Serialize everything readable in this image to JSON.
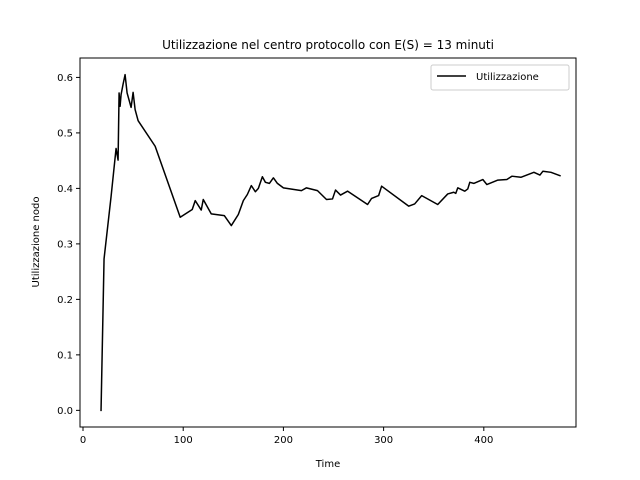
{
  "chart_data": {
    "type": "line",
    "title": "Utilizzazione nel centro protocollo con E(S) = 13 minuti",
    "xlabel": "Time",
    "ylabel": "Utilizzazione nodo",
    "xlim": [
      -3,
      492
    ],
    "ylim": [
      -0.03,
      0.635
    ],
    "xticks": [
      0,
      100,
      200,
      300,
      400
    ],
    "yticks": [
      0.0,
      0.1,
      0.2,
      0.3,
      0.4,
      0.5,
      0.6
    ],
    "ytick_labels": [
      "0.0",
      "0.1",
      "0.2",
      "0.3",
      "0.4",
      "0.5",
      "0.6"
    ],
    "grid": false,
    "legend": "top-right",
    "series": [
      {
        "name": "Utilizzazione",
        "color": "#000000",
        "x": [
          18,
          21,
          28,
          33,
          35,
          36,
          37,
          38,
          40,
          42,
          44,
          48,
          50,
          52,
          55,
          72,
          97,
          109,
          112,
          118,
          120,
          128,
          141,
          148,
          155,
          160,
          164,
          168,
          172,
          175,
          179,
          182,
          186,
          190,
          194,
          200,
          218,
          223,
          234,
          243,
          249,
          252,
          257,
          264,
          284,
          288,
          295,
          298,
          325,
          331,
          338,
          354,
          364,
          370,
          372,
          374,
          381,
          384,
          386,
          390,
          399,
          403,
          414,
          423,
          428,
          437,
          450,
          456,
          459,
          467,
          476
        ],
        "y": [
          0.0,
          0.273,
          0.385,
          0.472,
          0.451,
          0.572,
          0.548,
          0.569,
          0.588,
          0.605,
          0.572,
          0.546,
          0.573,
          0.542,
          0.522,
          0.476,
          0.348,
          0.362,
          0.378,
          0.361,
          0.38,
          0.354,
          0.351,
          0.333,
          0.353,
          0.378,
          0.389,
          0.405,
          0.394,
          0.4,
          0.421,
          0.411,
          0.409,
          0.419,
          0.409,
          0.401,
          0.396,
          0.401,
          0.396,
          0.38,
          0.381,
          0.397,
          0.388,
          0.395,
          0.371,
          0.382,
          0.387,
          0.404,
          0.368,
          0.372,
          0.387,
          0.371,
          0.39,
          0.393,
          0.391,
          0.401,
          0.395,
          0.399,
          0.411,
          0.409,
          0.416,
          0.407,
          0.415,
          0.416,
          0.422,
          0.42,
          0.429,
          0.424,
          0.431,
          0.429,
          0.423
        ]
      }
    ]
  }
}
